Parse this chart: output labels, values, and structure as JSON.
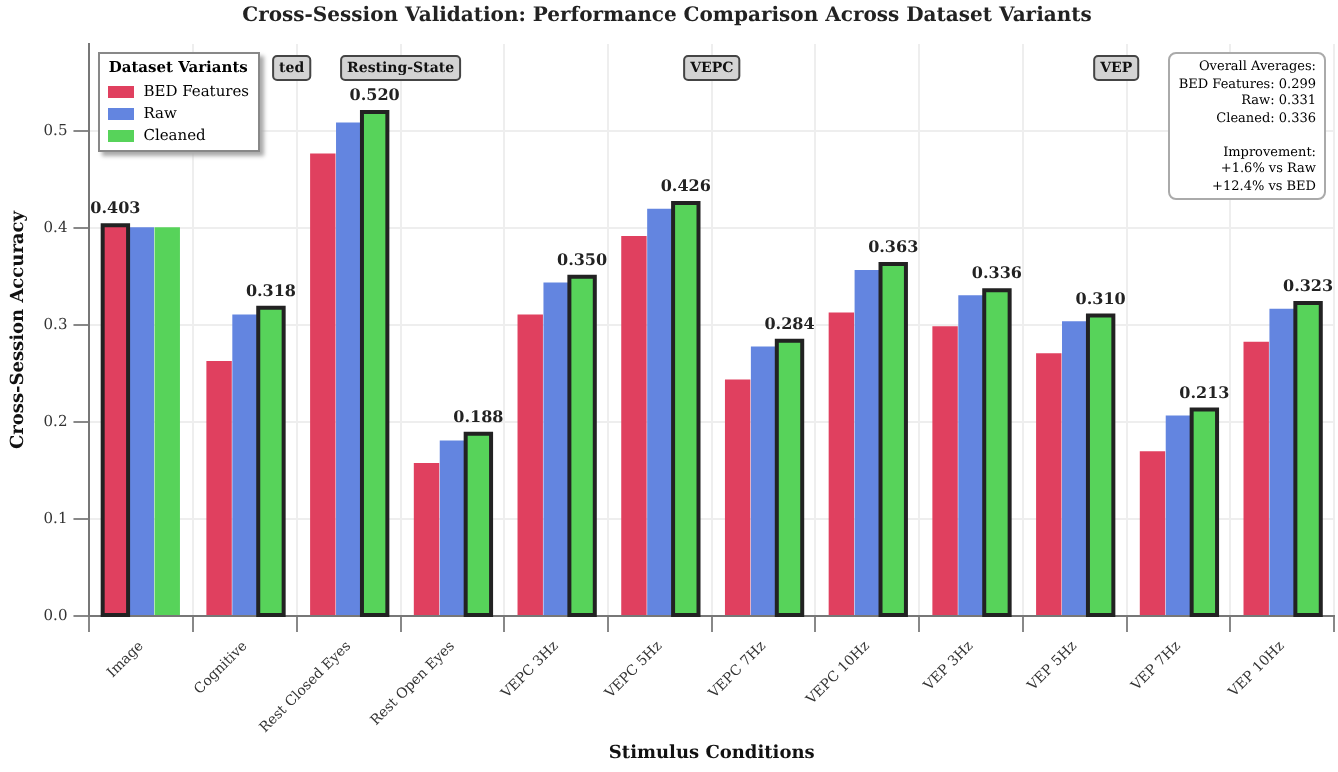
{
  "chart_data": {
    "type": "bar",
    "title": "Cross-Session Validation: Performance Comparison Across Dataset Variants",
    "xlabel": "Stimulus Conditions",
    "ylabel": "Cross-Session Accuracy",
    "legend_title": "Dataset Variants",
    "legend": "top left",
    "grid": true,
    "categories": [
      "Image",
      "Cognitive",
      "Rest Closed Eyes",
      "Rest Open Eyes",
      "VEPC 3Hz",
      "VEPC 5Hz",
      "VEPC 7Hz",
      "VEPC 10Hz",
      "VEP 3Hz",
      "VEP 5Hz",
      "VEP 7Hz",
      "VEP 10Hz"
    ],
    "series": [
      {
        "name": "BED Features",
        "color": "#e0405f",
        "values": [
          0.403,
          0.263,
          0.477,
          0.158,
          0.311,
          0.392,
          0.244,
          0.313,
          0.299,
          0.271,
          0.17,
          0.283
        ],
        "value_labels": [
          "0.403",
          null,
          null,
          null,
          null,
          null,
          null,
          null,
          null,
          null,
          null,
          null
        ]
      },
      {
        "name": "Raw",
        "color": "#6385e0",
        "values": [
          0.401,
          0.311,
          0.509,
          0.181,
          0.344,
          0.42,
          0.278,
          0.357,
          0.331,
          0.304,
          0.207,
          0.317
        ]
      },
      {
        "name": "Cleaned",
        "color": "#57d35a",
        "values": [
          0.401,
          0.318,
          0.52,
          0.188,
          0.35,
          0.426,
          0.284,
          0.363,
          0.336,
          0.31,
          0.213,
          0.323
        ],
        "value_labels": [
          null,
          "0.318",
          "0.520",
          "0.188",
          "0.350",
          "0.426",
          "0.284",
          "0.363",
          "0.336",
          "0.310",
          "0.213",
          "0.323"
        ]
      }
    ],
    "ylim": [
      0,
      0.59
    ],
    "yticks": [
      {
        "value": 0,
        "label": "0.0"
      },
      {
        "value": 0.1,
        "label": "0.1"
      },
      {
        "value": 0.2,
        "label": "0.2"
      },
      {
        "value": 0.3,
        "label": "0.3"
      },
      {
        "value": 0.4,
        "label": "0.4"
      },
      {
        "value": 0.5,
        "label": "0.5"
      }
    ],
    "annotations": [
      "ted",
      "Resting-State",
      "VEPC",
      "VEP",
      "Overall Averages:\nBED Features: 0.299\nRaw: 0.331\nCleaned: 0.336\n\nImprovement:\n+1.6% vs Raw\n+12.4% vs BED"
    ]
  }
}
